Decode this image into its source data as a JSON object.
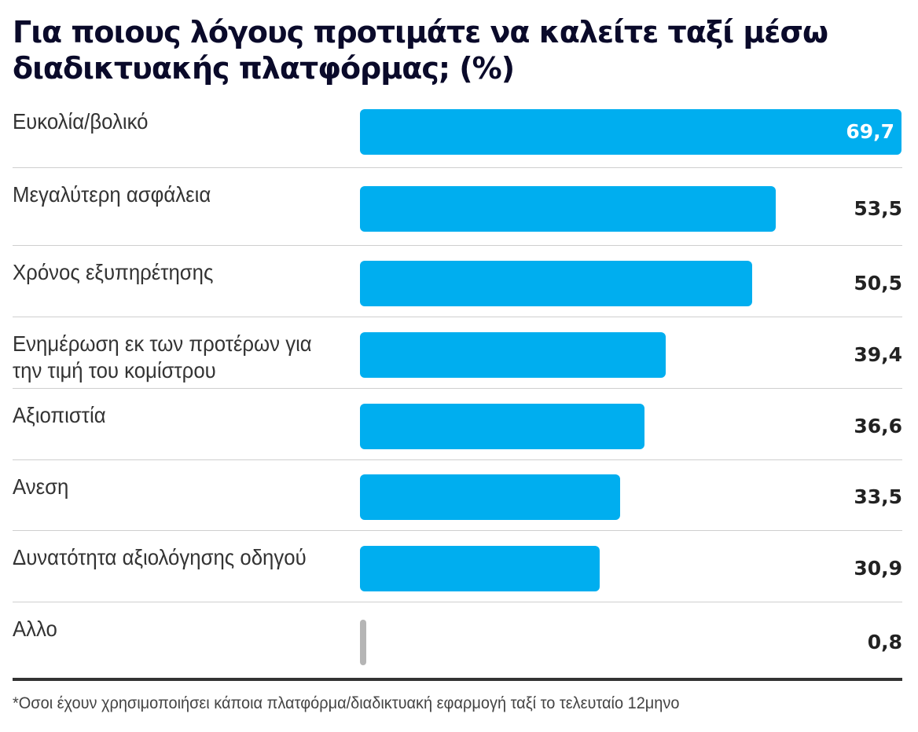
{
  "chart_data": {
    "type": "bar",
    "orientation": "horizontal",
    "title": "Για ποιους λόγους προτιμάτε να καλείτε ταξί μέσω διαδικτυακής πλατφόρμας; (%)",
    "categories": [
      "Ευκολία/βολικό",
      "Μεγαλύτερη ασφάλεια",
      "Χρόνος εξυπηρέτησης",
      "Ενημέρωση εκ των προτέρων για την τιμή του κομίστρου",
      "Αξιοπιστία",
      "Ανεση",
      "Δυνατότητα αξιολόγησης οδηγού",
      "Αλλο"
    ],
    "values": [
      69.7,
      53.5,
      50.5,
      39.4,
      36.6,
      33.5,
      30.9,
      0.8
    ],
    "value_labels": [
      "69,7",
      "53,5",
      "50,5",
      "39,4",
      "36,6",
      "33,5",
      "30,9",
      "0,8"
    ],
    "xlim": [
      0,
      69.7
    ],
    "grid": false,
    "colors": {
      "bar": "#00aeef",
      "other_bar": "#b5b5b5",
      "value_inside": "#ffffff",
      "value": "#222222"
    },
    "footnote": "*Οσοι έχουν χρησιμοποιήσει κάποια πλατφόρμα/διαδικτυακή εφαρμογή ταξί το τελευταίο 12μηνο"
  }
}
